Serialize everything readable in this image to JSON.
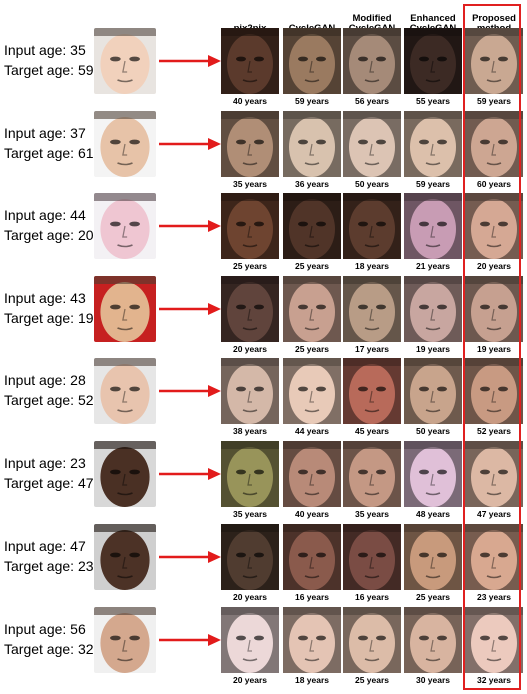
{
  "methods": [
    "pix2pix",
    "CycleGAN",
    "Modified\nCycleGAN",
    "Enhanced\nCycleGAN",
    "Proposed\nmethod"
  ],
  "colors": {
    "arrow": "#e21b1b",
    "highlight_box": "#e02020"
  },
  "rows": [
    {
      "input_label": "Input age: 35",
      "target_label": "Target age: 59",
      "input_skin": "#f1d1bc",
      "input_bg": "#e8e4e0",
      "outputs": [
        {
          "age": "40 years",
          "skin": "#5b3a2c"
        },
        {
          "age": "59 years",
          "skin": "#9a7a60"
        },
        {
          "age": "56 years",
          "skin": "#a58a78"
        },
        {
          "age": "55 years",
          "skin": "#3c2a24"
        },
        {
          "age": "59 years",
          "skin": "#c9a892"
        }
      ]
    },
    {
      "input_label": "Input age: 37",
      "target_label": "Target age: 61",
      "input_skin": "#e7c3a8",
      "input_bg": "#f4f4f4",
      "outputs": [
        {
          "age": "35 years",
          "skin": "#b08e76"
        },
        {
          "age": "36 years",
          "skin": "#d8c2ae"
        },
        {
          "age": "50 years",
          "skin": "#dcc4b4"
        },
        {
          "age": "59 years",
          "skin": "#dcc0ab"
        },
        {
          "age": "60 years",
          "skin": "#cda692"
        }
      ]
    },
    {
      "input_label": "Input age: 44",
      "target_label": "Target age: 20",
      "input_skin": "#efc6d2",
      "input_bg": "#f3f1f4",
      "outputs": [
        {
          "age": "25 years",
          "skin": "#6e4430"
        },
        {
          "age": "25 years",
          "skin": "#503428"
        },
        {
          "age": "18 years",
          "skin": "#5c3c2e"
        },
        {
          "age": "21 years",
          "skin": "#c89cb4"
        },
        {
          "age": "20 years",
          "skin": "#d5a894"
        }
      ]
    },
    {
      "input_label": "Input age: 43",
      "target_label": "Target age: 19",
      "input_skin": "#e2b48e",
      "input_bg": "#c62020",
      "outputs": [
        {
          "age": "20 years",
          "skin": "#60443c"
        },
        {
          "age": "25 years",
          "skin": "#c8a090"
        },
        {
          "age": "17 years",
          "skin": "#b89c86"
        },
        {
          "age": "19 years",
          "skin": "#c8a6a0"
        },
        {
          "age": "19 years",
          "skin": "#c6a090"
        }
      ]
    },
    {
      "input_label": "Input age: 28",
      "target_label": "Target age: 52",
      "input_skin": "#e8c4ae",
      "input_bg": "#e6e6e6",
      "outputs": [
        {
          "age": "38 years",
          "skin": "#d4b8a8"
        },
        {
          "age": "44 years",
          "skin": "#e8cab8"
        },
        {
          "age": "45 years",
          "skin": "#b86a5a"
        },
        {
          "age": "50 years",
          "skin": "#c8a48c"
        },
        {
          "age": "52 years",
          "skin": "#c89a82"
        }
      ]
    },
    {
      "input_label": "Input age: 23",
      "target_label": "Target age: 47",
      "input_skin": "#4a3024",
      "input_bg": "#d8d8d8",
      "outputs": [
        {
          "age": "35 years",
          "skin": "#98945a"
        },
        {
          "age": "40 years",
          "skin": "#b88a78"
        },
        {
          "age": "35 years",
          "skin": "#c49884"
        },
        {
          "age": "48 years",
          "skin": "#e0c0d8"
        },
        {
          "age": "47 years",
          "skin": "#dcb8a4"
        }
      ]
    },
    {
      "input_label": "Input age: 47",
      "target_label": "Target age: 23",
      "input_skin": "#4c3226",
      "input_bg": "#cfcfcf",
      "outputs": [
        {
          "age": "20 years",
          "skin": "#503c30"
        },
        {
          "age": "16 years",
          "skin": "#8a5a4c"
        },
        {
          "age": "16 years",
          "skin": "#7a4c44"
        },
        {
          "age": "25 years",
          "skin": "#c89a7c"
        },
        {
          "age": "23 years",
          "skin": "#d8a890"
        }
      ]
    },
    {
      "input_label": "Input age: 56",
      "target_label": "Target age: 32",
      "input_skin": "#d4a88e",
      "input_bg": "#f0f0f0",
      "outputs": [
        {
          "age": "20 years",
          "skin": "#ecd8d8"
        },
        {
          "age": "18 years",
          "skin": "#e4c4b4"
        },
        {
          "age": "25 years",
          "skin": "#dcbca8"
        },
        {
          "age": "30 years",
          "skin": "#d8b4a0"
        },
        {
          "age": "32 years",
          "skin": "#eccabe"
        }
      ]
    }
  ]
}
